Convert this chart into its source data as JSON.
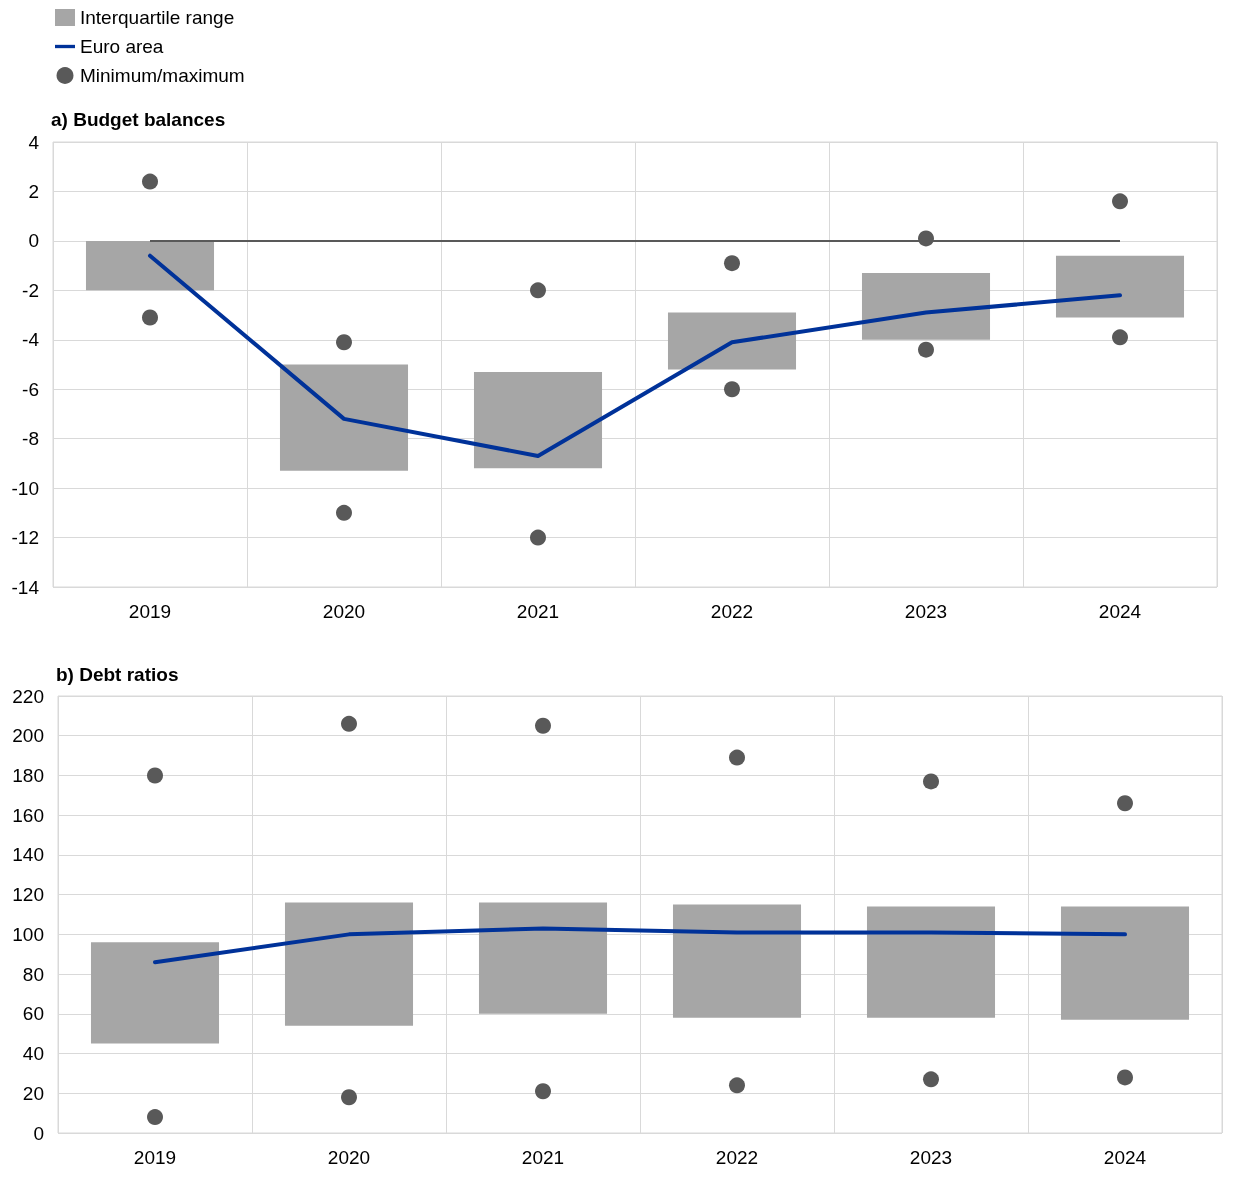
{
  "chart_data": [
    {
      "type": "bar",
      "title": "a) Budget balances",
      "categories": [
        "2019",
        "2020",
        "2021",
        "2022",
        "2023",
        "2024"
      ],
      "ylim": [
        -14,
        4
      ],
      "yticks": [
        -14,
        -12,
        -10,
        -8,
        -6,
        -4,
        -2,
        0,
        2,
        4
      ],
      "grid": true,
      "legend": "top left",
      "ref_lines": [
        {
          "axis": "y",
          "value": 0,
          "color": "#595959"
        }
      ],
      "series": [
        {
          "name": "Interquartile range",
          "color": "#a6a6a6",
          "base": [
            -2.0,
            -9.3,
            -9.2,
            -5.2,
            -4.0,
            -3.1
          ],
          "values": [
            2.0,
            4.3,
            3.9,
            2.3,
            2.7,
            2.5
          ]
        },
        {
          "name": "Euro area",
          "type": "line",
          "color": "#003299",
          "marker": "none",
          "values": [
            -0.6,
            -7.2,
            -8.7,
            -4.1,
            -2.9,
            -2.2
          ]
        },
        {
          "name": "Minimum/maximum",
          "type": "scatter",
          "color": "#595959",
          "marker": "circle",
          "values": [
            2.4,
            -4.1,
            -2.0,
            -0.9,
            0.1,
            1.6
          ]
        },
        {
          "type": "scatter",
          "color": "#595959",
          "marker": "circle",
          "values": [
            -3.1,
            -11.0,
            -12.0,
            -6.0,
            -4.4,
            -3.9
          ]
        }
      ]
    },
    {
      "type": "bar",
      "title": "b) Debt ratios",
      "categories": [
        "2019",
        "2020",
        "2021",
        "2022",
        "2023",
        "2024"
      ],
      "ylim": [
        0,
        220
      ],
      "yticks": [
        0,
        20,
        40,
        60,
        80,
        100,
        120,
        140,
        160,
        180,
        200,
        220
      ],
      "grid": true,
      "series": [
        {
          "color": "#a6a6a6",
          "base": [
            45,
            54,
            60,
            58,
            58,
            57
          ],
          "values": [
            51,
            62,
            56,
            57,
            56,
            57
          ]
        },
        {
          "type": "line",
          "color": "#003299",
          "marker": "none",
          "values": [
            86,
            100,
            103,
            101,
            101,
            100
          ]
        },
        {
          "type": "scatter",
          "color": "#595959",
          "marker": "circle",
          "values": [
            180,
            206,
            205,
            189,
            177,
            166
          ]
        },
        {
          "type": "scatter",
          "color": "#595959",
          "marker": "circle",
          "values": [
            8,
            18,
            21,
            24,
            27,
            28
          ]
        }
      ]
    }
  ]
}
